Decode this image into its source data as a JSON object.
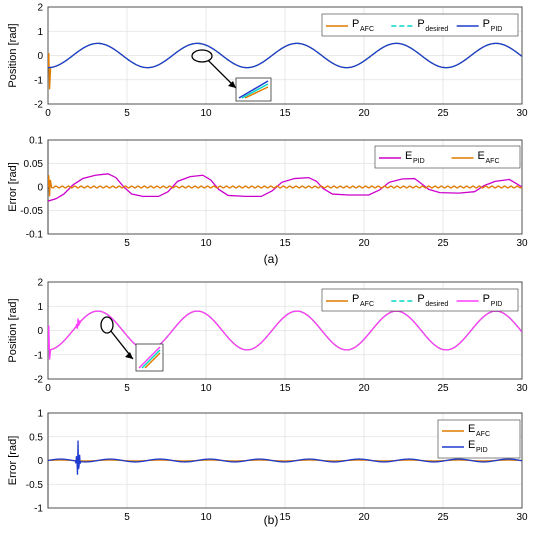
{
  "captions": {
    "a": "(a)",
    "b": "(b)"
  },
  "colors": {
    "afc": "#e07b00",
    "desired": "#00d8c8",
    "pid_a": "#1f3ccf",
    "pid_b": "#ff3cff",
    "err_pid_a": "#cc00cc",
    "err_pid_b": "#1f3ccf"
  },
  "chart_data": [
    {
      "id": "a-position",
      "type": "line",
      "title": "",
      "xlabel": "",
      "ylabel": "Position [rad]",
      "xlim": [
        0,
        30
      ],
      "ylim": [
        -2,
        2
      ],
      "xticks": [
        "0",
        "5",
        "10",
        "15",
        "20",
        "25",
        "30"
      ],
      "yticks": [
        "-2",
        "-1",
        "0",
        "1",
        "2"
      ],
      "grid": true,
      "legend": "top-right",
      "legend_labels": [
        {
          "main": "P",
          "sub": "AFC"
        },
        {
          "main": "P",
          "sub": "desired"
        },
        {
          "main": "P",
          "sub": "PID"
        }
      ],
      "signal": {
        "amplitude": 0.5,
        "period": 6.3,
        "phase_deg": -90,
        "offset": 0
      },
      "series": [
        {
          "name": "P AFC",
          "key": "afc",
          "style": "solid",
          "initial_spike": [
            0.0,
            0.6,
            -0.9
          ]
        },
        {
          "name": "P desired",
          "key": "desired",
          "style": "dashed"
        },
        {
          "name": "P PID",
          "key": "pid_a",
          "style": "solid"
        }
      ]
    },
    {
      "id": "a-error",
      "type": "line",
      "title": "",
      "xlabel": "",
      "ylabel": "Error [rad]",
      "xlim": [
        0,
        30
      ],
      "ylim": [
        -0.1,
        0.1
      ],
      "xticks": [
        "5",
        "10",
        "15",
        "20",
        "25",
        "30"
      ],
      "yticks": [
        "-0.1",
        "-0.05",
        "0",
        "0.05",
        "0.1"
      ],
      "grid": true,
      "legend": "top-right",
      "legend_labels": [
        {
          "main": "E",
          "sub": "PID"
        },
        {
          "main": "E",
          "sub": "AFC"
        }
      ],
      "series": [
        {
          "name": "E PID",
          "key": "err_pid_a",
          "points": [
            [
              0,
              -0.03
            ],
            [
              0.5,
              -0.025
            ],
            [
              1,
              -0.015
            ],
            [
              1.6,
              0.005
            ],
            [
              2.2,
              0.018
            ],
            [
              3,
              0.025
            ],
            [
              3.8,
              0.028
            ],
            [
              4.3,
              0.02
            ],
            [
              4.8,
              0
            ],
            [
              5.3,
              -0.015
            ],
            [
              6,
              -0.02
            ],
            [
              7,
              -0.02
            ],
            [
              7.6,
              -0.01
            ],
            [
              8.2,
              0.012
            ],
            [
              9,
              0.022
            ],
            [
              9.8,
              0.025
            ],
            [
              10.3,
              0.015
            ],
            [
              10.8,
              -0.005
            ],
            [
              11.4,
              -0.018
            ],
            [
              12.5,
              -0.02
            ],
            [
              13.5,
              -0.02
            ],
            [
              14.2,
              -0.008
            ],
            [
              14.8,
              0.01
            ],
            [
              15.6,
              0.018
            ],
            [
              16.5,
              0.02
            ],
            [
              17,
              0.012
            ],
            [
              17.4,
              -0.003
            ],
            [
              18,
              -0.015
            ],
            [
              19,
              -0.017
            ],
            [
              20.3,
              -0.017
            ],
            [
              21,
              -0.006
            ],
            [
              21.6,
              0.01
            ],
            [
              22.4,
              0.017
            ],
            [
              23.2,
              0.018
            ],
            [
              23.6,
              0.008
            ],
            [
              24.1,
              -0.005
            ],
            [
              24.8,
              -0.012
            ],
            [
              26,
              -0.013
            ],
            [
              27,
              -0.01
            ],
            [
              27.6,
              0.003
            ],
            [
              28.3,
              0.012
            ],
            [
              29.2,
              0.016
            ],
            [
              29.6,
              0.008
            ],
            [
              30,
              0
            ]
          ]
        },
        {
          "name": "E AFC",
          "key": "afc",
          "oscillation": {
            "amplitude": 0.002,
            "period": 0.4
          },
          "initial_spike": [
            0.0,
            0.025,
            -0.02,
            0.015
          ]
        }
      ]
    },
    {
      "id": "b-position",
      "type": "line",
      "title": "",
      "xlabel": "",
      "ylabel": "Position [rad]",
      "xlim": [
        0,
        30
      ],
      "ylim": [
        -2,
        2
      ],
      "xticks": [
        "0",
        "5",
        "10",
        "15",
        "20",
        "25",
        "30"
      ],
      "yticks": [
        "-2",
        "-1",
        "0",
        "1",
        "2"
      ],
      "grid": true,
      "legend": "top-right",
      "legend_labels": [
        {
          "main": "P",
          "sub": "AFC"
        },
        {
          "main": "P",
          "sub": "desired"
        },
        {
          "main": "P",
          "sub": "PID"
        }
      ],
      "signal": {
        "amplitude": 0.8,
        "period": 6.3,
        "phase_deg": -90,
        "offset": 0
      },
      "series": [
        {
          "name": "P AFC",
          "key": "afc",
          "style": "solid"
        },
        {
          "name": "P desired",
          "key": "desired",
          "style": "dashed"
        },
        {
          "name": "P PID",
          "key": "pid_b",
          "style": "solid",
          "initial_spike": [
            0.0,
            1.0,
            -0.4
          ],
          "burst": {
            "x": 1.9,
            "amplitude": 0.25,
            "width": 0.3
          }
        }
      ]
    },
    {
      "id": "b-error",
      "type": "line",
      "title": "",
      "xlabel": "",
      "ylabel": "Error [rad]",
      "xlim": [
        0,
        30
      ],
      "ylim": [
        -1,
        1
      ],
      "xticks": [
        "5",
        "10",
        "15",
        "20",
        "25",
        "30"
      ],
      "yticks": [
        "-1",
        "-0.5",
        "0",
        "0.5",
        "1"
      ],
      "grid": true,
      "legend": "top-right",
      "legend_labels": [
        {
          "main": "E",
          "sub": "AFC"
        },
        {
          "main": "E",
          "sub": "PID"
        }
      ],
      "series": [
        {
          "name": "E AFC",
          "key": "afc",
          "oscillation": {
            "amplitude": 0.01,
            "period": 3.15
          }
        },
        {
          "name": "E PID",
          "key": "err_pid_b",
          "oscillation": {
            "amplitude": 0.03,
            "period": 3.15
          },
          "burst": {
            "x": 1.9,
            "amplitude": 0.45,
            "width": 0.3
          }
        }
      ]
    }
  ]
}
